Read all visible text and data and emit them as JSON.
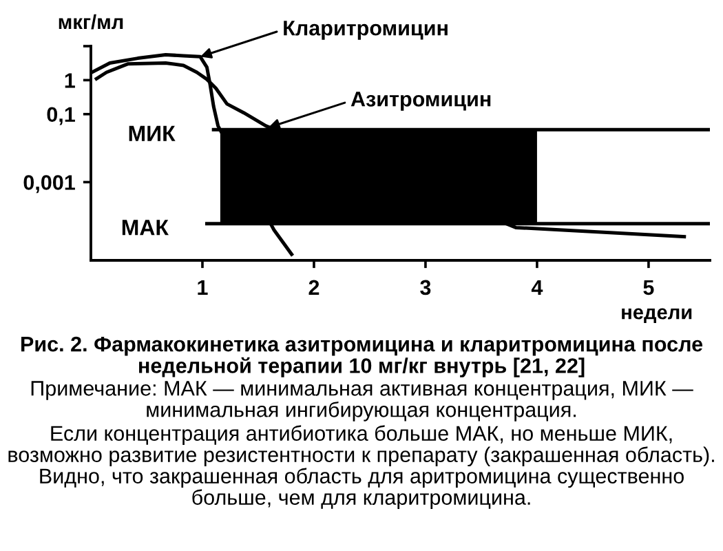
{
  "chart_data": {
    "type": "line",
    "title": "Рис. 2. Фармакокинетика азитромицина и кларитромицина после недельной терапии 10 мг/кг внутрь [21, 22]",
    "xlabel": "недели",
    "ylabel": "мкг/мл",
    "annotations": [
      {
        "text": "Кларитромицин",
        "x": 0.98,
        "y": 4.9
      },
      {
        "text": "Азитромицин",
        "x": 1.59,
        "y": 0.04
      },
      "Примечание: МАК — минимальная активная концентрация, МИК — минимальная ингибирующая концентрация.",
      "Если концентрация антибиотика больше МАК, но меньше МИК, возможно развитие резистентности к препарату (закрашенная область). Видно, что закрашенная область для аритромицина существенно больше, чем для кларитромицина."
    ],
    "xlim": [
      0,
      5.55
    ],
    "xticks": [
      1,
      2,
      3,
      4,
      5
    ],
    "ylim": [
      5e-06,
      10
    ],
    "yticks": [
      {
        "value": 10,
        "label": null
      },
      1,
      {
        "value": 0.1,
        "label": "0,1"
      },
      {
        "value": 0.001,
        "label": "0,001"
      }
    ],
    "log": true,
    "legend": false,
    "marker": "none",
    "line_style": "solid",
    "series": [
      {
        "type": "line",
        "color": "#000000",
        "x": [
          1.16,
          4
        ],
        "values": [
          null,
          null
        ],
        "lower": [
          6e-05,
          6e-05
        ],
        "upper": [
          0.035,
          0.035
        ]
      },
      {
        "type": "line",
        "name": "МИК",
        "color": "#000000",
        "x": [
          1.1,
          5.55
        ],
        "values": [
          0.035,
          0.035
        ]
      },
      {
        "type": "line",
        "name": "МАК",
        "color": "#000000",
        "x": [
          1.04,
          5.55
        ],
        "values": [
          6e-05,
          6e-05
        ]
      },
      {
        "type": "line",
        "color": "#000000",
        "x": [
          0.01,
          0.17,
          0.42,
          0.67,
          0.83,
          0.98,
          1.04,
          1.07,
          1.1,
          1.14,
          1.64,
          1.8
        ],
        "values": [
          1.7,
          3.2,
          4.4,
          5.6,
          5.2,
          4.9,
          2.4,
          0.7,
          0.17,
          0.045,
          4e-05,
          7.5e-06
        ]
      },
      {
        "type": "line",
        "color": "#000000",
        "x": [
          0.05,
          0.14,
          0.33,
          0.67,
          0.83,
          0.95,
          1.04,
          1.12,
          1.22,
          1.37,
          1.57,
          3.81,
          5.32
        ],
        "values": [
          1.1,
          1.7,
          3.0,
          3.2,
          2.7,
          1.7,
          1.06,
          0.58,
          0.2,
          0.11,
          0.045,
          4.6e-05,
          2.5e-05
        ]
      }
    ]
  }
}
